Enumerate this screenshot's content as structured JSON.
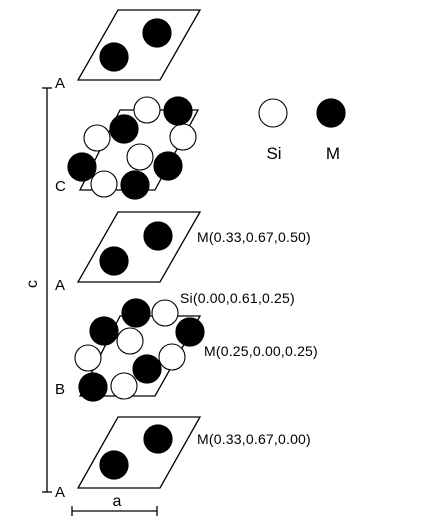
{
  "legend": {
    "si": {
      "label": "Si",
      "color": "#ffffff"
    },
    "m": {
      "label": "M",
      "color": "#000000"
    }
  },
  "axes": {
    "c_label": "c",
    "a_label": "a"
  },
  "layers": [
    {
      "id": "A_top",
      "label": "A"
    },
    {
      "id": "C",
      "label": "C"
    },
    {
      "id": "A_middle",
      "label": "A",
      "coord_label": "M(0.33,0.67,0.50)"
    },
    {
      "id": "B",
      "label": "B",
      "coord_label_si": "Si(0.00,0.61,0.25)",
      "coord_label_m": "M(0.25,0.00,0.25)"
    },
    {
      "id": "A_bottom",
      "label": "A",
      "coord_label": "M(0.33,0.67,0.00)"
    }
  ]
}
